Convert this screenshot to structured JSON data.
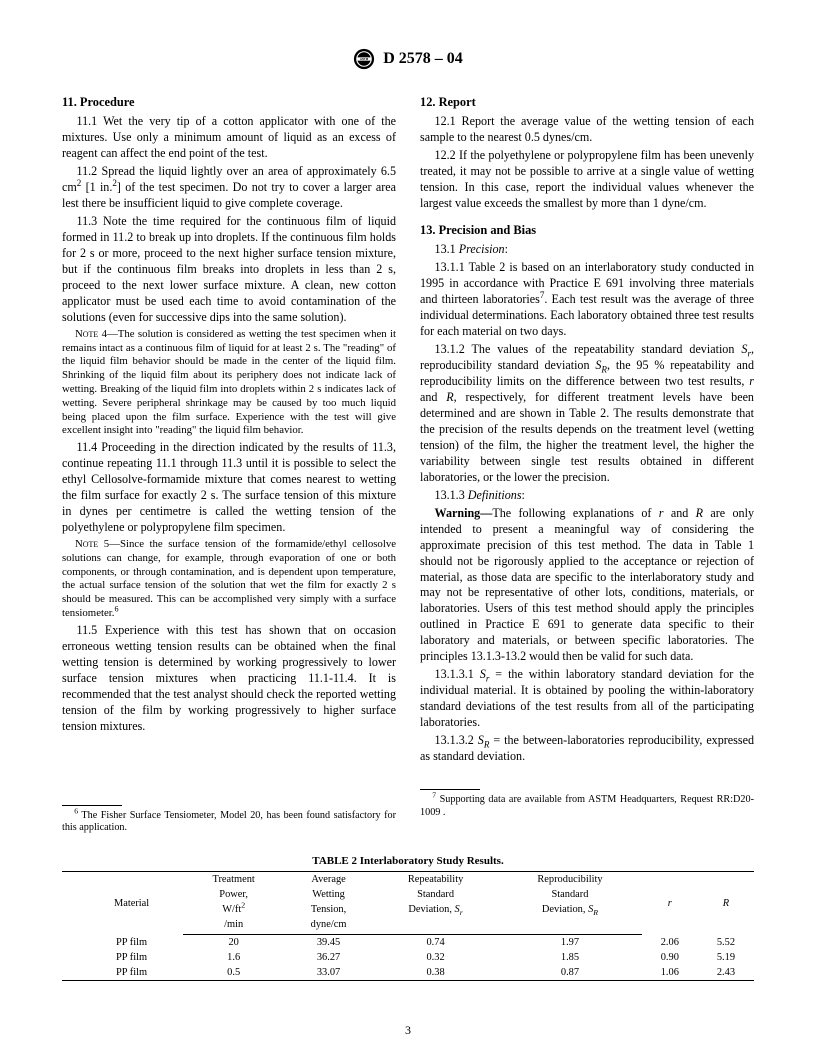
{
  "header": {
    "standard": "D 2578 – 04"
  },
  "left": {
    "h11": "11. Procedure",
    "p11_1": "11.1 Wet the very tip of a cotton applicator with one of the mixtures. Use only a minimum amount of liquid as an excess of reagent can affect the end point of the test.",
    "p11_2a": "11.2 Spread the liquid lightly over an area of approximately 6.5 cm",
    "p11_2b": " [1 in.",
    "p11_2c": "] of the test specimen. Do not try to cover a larger area lest there be insufficient liquid to give complete coverage.",
    "p11_3": "11.3 Note the time required for the continuous film of liquid formed in 11.2 to break up into droplets. If the continuous film holds for 2 s or more, proceed to the next higher surface tension mixture, but if the continuous film breaks into droplets in less than 2 s, proceed to the next lower surface mixture. A clean, new cotton applicator must be used each time to avoid contamination of the solutions (even for successive dips into the same solution).",
    "note4_label": "Note 4—",
    "note4": "The solution is considered as wetting the test specimen when it remains intact as a continuous film of liquid for at least 2 s. The \"reading\" of the liquid film behavior should be made in the center of the liquid film. Shrinking of the liquid film about its periphery does not indicate lack of wetting. Breaking of the liquid film into droplets within 2 s indicates lack of wetting. Severe peripheral shrinkage may be caused by too much liquid being placed upon the film surface. Experience with the test will give excellent insight into \"reading\" the liquid film behavior.",
    "p11_4": "11.4 Proceeding in the direction indicated by the results of 11.3, continue repeating 11.1 through 11.3 until it is possible to select the ethyl Cellosolve-formamide mixture that comes nearest to wetting the film surface for exactly 2 s. The surface tension of this mixture in dynes per centimetre is called the wetting tension of the polyethylene or polypropylene film specimen.",
    "note5_label": "Note 5—",
    "note5a": "Since the surface tension of the formamide/ethyl cellosolve solutions can change, for example, through evaporation of one or both components, or through contamination, and is dependent upon temperature, the actual surface tension of the solution that wet the film for exactly 2 s should be measured. This can be accomplished very simply with a surface tensiometer.",
    "p11_5": "11.5 Experience with this test has shown that on occasion erroneous wetting tension results can be obtained when the final wetting tension is determined by working progressively to lower surface tension mixtures when practicing 11.1-11.4. It is recommended that the test analyst should check the reported wetting tension of the film by working progressively to higher surface tension mixtures.",
    "fn6_a": " The Fisher Surface Tensiometer, Model 20, has been found satisfactory for this application."
  },
  "right": {
    "h12": "12. Report",
    "p12_1": "12.1 Report the average value of the wetting tension of each sample to the nearest 0.5 dynes/cm.",
    "p12_2": "12.2 If the polyethylene or polypropylene film has been unevenly treated, it may not be possible to arrive at a single value of wetting tension. In this case, report the individual values whenever the largest value exceeds the smallest by more than 1 dyne/cm.",
    "h13": "13. Precision and Bias",
    "p13_1_label": "13.1 ",
    "p13_1_i": "Precision",
    "p13_1_1a": "13.1.1 Table 2 is based on an interlaboratory study conducted in 1995 in accordance with Practice E 691 involving three materials and thirteen laboratories",
    "p13_1_1b": ". Each test result was the average of three individual determinations. Each laboratory obtained three test results for each material on two days.",
    "p13_1_2a": "13.1.2 The values of the repeatability standard deviation ",
    "p13_1_2b": ", reproducibility standard deviation ",
    "p13_1_2c": ", the 95 % repeatability and reproducibility limits on the difference between two test results, ",
    "p13_1_2d": " and ",
    "p13_1_2e": ", respectively, for different treatment levels have been determined and are shown in Table 2. The results demonstrate that the precision of the results depends on the treatment level (wetting tension) of the film, the higher the treatment level, the higher the variability between single test results obtained in different laboratories, or the lower the precision.",
    "p13_1_3_label": "13.1.3 ",
    "p13_1_3_i": "Definitions",
    "warn_label": "Warning—",
    "warn_a": "The following explanations of ",
    "warn_b": " and ",
    "warn_c": " are only intended to present a meaningful way of considering the approximate precision of this test method. The data in Table 1 should not be rigorously applied to the acceptance or rejection of material, as those data are specific to the interlaboratory study and may not be representative of other lots, conditions, materials, or laboratories. Users of this test method should apply the principles outlined in Practice E 691 to generate data specific to their laboratory and materials, or between specific laboratories. The principles 13.1.3-13.2 would then be valid for such data.",
    "p13_1_3_1a": "13.1.3.1 ",
    "p13_1_3_1b": " = the within laboratory standard deviation for the individual material. It is obtained by pooling the within-laboratory standard deviations of the test results from all of the participating laboratories.",
    "p13_1_3_2a": "13.1.3.2 ",
    "p13_1_3_2b": " = the between-laboratories reproducibility, expressed as standard deviation.",
    "fn7": " Supporting data are available from ASTM Headquarters, Request RR:D20-1009 ."
  },
  "table": {
    "title": "TABLE 2  Interlaboratory Study Results.",
    "head": {
      "c1": "Material",
      "c2a": "Treatment",
      "c2b": "Power,",
      "c2c": "W/ft",
      "c2d": "/min",
      "c3a": "Average",
      "c3b": "Wetting",
      "c3c": "Tension,",
      "c3d": "dyne/cm",
      "c4a": "Repeatability",
      "c4b": "Standard",
      "c4c": "Deviation, ",
      "c5a": "Reproducibility",
      "c5b": "Standard",
      "c5c": "Deviation, ",
      "c6": "r",
      "c7": "R"
    },
    "rows": [
      {
        "m": "PP film",
        "tp": "20",
        "avg": "39.45",
        "sr": "0.74",
        "sR": "1.97",
        "r": "2.06",
        "R": "5.52"
      },
      {
        "m": "PP film",
        "tp": "1.6",
        "avg": "36.27",
        "sr": "0.32",
        "sR": "1.85",
        "r": "0.90",
        "R": "5.19"
      },
      {
        "m": "PP film",
        "tp": "0.5",
        "avg": "33.07",
        "sr": "0.38",
        "sR": "0.87",
        "r": "1.06",
        "R": "2.43"
      }
    ]
  },
  "page_number": "3"
}
